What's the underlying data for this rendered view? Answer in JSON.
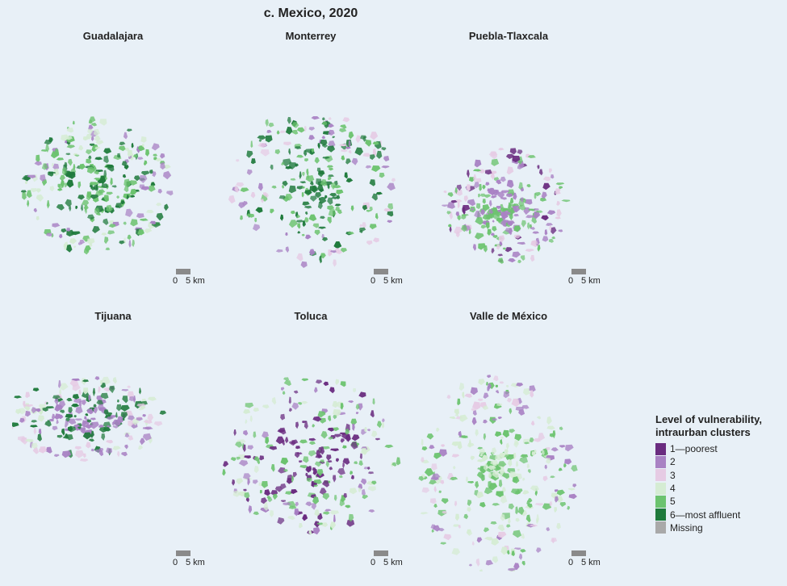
{
  "title": "c. Mexico, 2020",
  "scale_bar": {
    "zero": "0",
    "label": "5 km"
  },
  "legend": {
    "title_line1": "Level of vulnerability,",
    "title_line2": "intraurban clusters",
    "items": [
      {
        "label": "1—poorest",
        "color": "#6a2c80"
      },
      {
        "label": "2",
        "color": "#a982c4"
      },
      {
        "label": "3",
        "color": "#e6cbe4"
      },
      {
        "label": "4",
        "color": "#d5ecd3"
      },
      {
        "label": "5",
        "color": "#6cc36f"
      },
      {
        "label": "6—most affluent",
        "color": "#1f7a3c"
      },
      {
        "label": "Missing",
        "color": "#a9a9a9"
      }
    ]
  },
  "cities": [
    {
      "name": "Guadalajara",
      "dominant_classes": [
        "6",
        "5",
        "4",
        "2"
      ]
    },
    {
      "name": "Monterrey",
      "dominant_classes": [
        "6",
        "5",
        "2",
        "3"
      ]
    },
    {
      "name": "Puebla-Tlaxcala",
      "dominant_classes": [
        "5",
        "2",
        "1",
        "3"
      ]
    },
    {
      "name": "Tijuana",
      "dominant_classes": [
        "6",
        "2",
        "3",
        "4"
      ]
    },
    {
      "name": "Toluca",
      "dominant_classes": [
        "5",
        "1",
        "4",
        "2"
      ]
    },
    {
      "name": "Valle de México",
      "dominant_classes": [
        "5",
        "4",
        "3",
        "2"
      ]
    }
  ]
}
